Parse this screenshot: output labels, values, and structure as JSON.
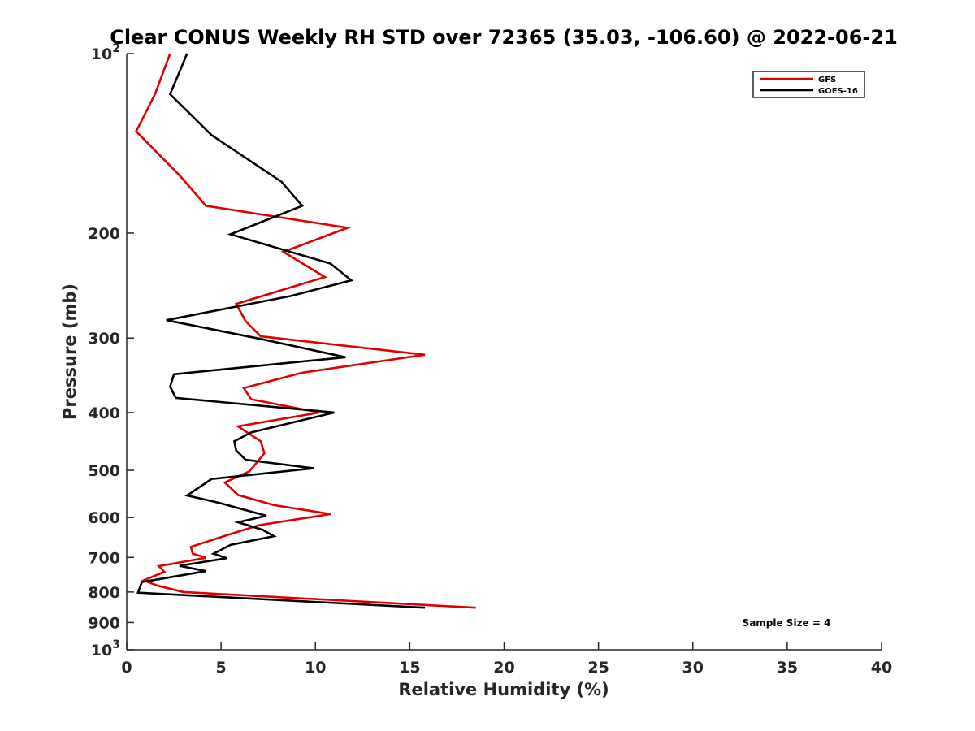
{
  "chart_data": {
    "type": "line",
    "title": "Clear CONUS Weekly RH STD over 72365 (35.03, -106.60) @ 2022-06-21",
    "xlabel": "Relative Humidity (%)",
    "ylabel": "Pressure (mb)",
    "xlim": [
      0,
      40
    ],
    "ylim": [
      100,
      1000
    ],
    "y_scale": "log",
    "y_reversed": true,
    "x_ticks": [
      "0",
      "5",
      "10",
      "15",
      "20",
      "25",
      "30",
      "35",
      "40"
    ],
    "x_tick_values": [
      0,
      5,
      10,
      15,
      20,
      25,
      30,
      35,
      40
    ],
    "y_ticks": [
      {
        "value": 100,
        "base": "10",
        "exp": "2"
      },
      {
        "value": 200,
        "base": "200",
        "exp": ""
      },
      {
        "value": 300,
        "base": "300",
        "exp": ""
      },
      {
        "value": 400,
        "base": "400",
        "exp": ""
      },
      {
        "value": 500,
        "base": "500",
        "exp": ""
      },
      {
        "value": 600,
        "base": "600",
        "exp": ""
      },
      {
        "value": 700,
        "base": "700",
        "exp": ""
      },
      {
        "value": 800,
        "base": "800",
        "exp": ""
      },
      {
        "value": 900,
        "base": "900",
        "exp": ""
      },
      {
        "value": 1000,
        "base": "10",
        "exp": "3"
      }
    ],
    "legend_position": "top-right",
    "annotation": "Sample Size = 4",
    "series": [
      {
        "name": "GFS",
        "color": "#e00000",
        "points": [
          [
            2.3,
            100
          ],
          [
            1.5,
            117
          ],
          [
            0.5,
            135
          ],
          [
            2.8,
            160
          ],
          [
            4.2,
            180
          ],
          [
            11.7,
            196
          ],
          [
            8.3,
            215
          ],
          [
            10.5,
            237
          ],
          [
            5.8,
            263
          ],
          [
            6.3,
            281
          ],
          [
            7.1,
            298
          ],
          [
            15.8,
            320
          ],
          [
            9.3,
            343
          ],
          [
            6.2,
            364
          ],
          [
            6.6,
            380
          ],
          [
            10.2,
            400
          ],
          [
            5.9,
            422
          ],
          [
            7.1,
            447
          ],
          [
            7.3,
            468
          ],
          [
            6.5,
            502
          ],
          [
            5.2,
            524
          ],
          [
            5.9,
            550
          ],
          [
            7.8,
            572
          ],
          [
            10.8,
            592
          ],
          [
            7.0,
            618
          ],
          [
            5.4,
            641
          ],
          [
            3.4,
            672
          ],
          [
            3.5,
            690
          ],
          [
            4.2,
            701
          ],
          [
            1.7,
            724
          ],
          [
            2.0,
            740
          ],
          [
            0.9,
            765
          ],
          [
            1.6,
            780
          ],
          [
            3.0,
            800
          ],
          [
            18.5,
            850
          ]
        ]
      },
      {
        "name": "GOES-16",
        "color": "#000000",
        "points": [
          [
            3.2,
            100
          ],
          [
            2.3,
            117
          ],
          [
            4.5,
            137
          ],
          [
            8.2,
            164
          ],
          [
            9.3,
            180
          ],
          [
            5.5,
            201
          ],
          [
            10.8,
            225
          ],
          [
            11.9,
            240
          ],
          [
            8.7,
            255
          ],
          [
            2.1,
            280
          ],
          [
            7.1,
            301
          ],
          [
            11.6,
            323
          ],
          [
            2.5,
            345
          ],
          [
            2.3,
            362
          ],
          [
            2.6,
            378
          ],
          [
            11.0,
            400
          ],
          [
            6.6,
            432
          ],
          [
            5.7,
            447
          ],
          [
            5.8,
            463
          ],
          [
            6.3,
            480
          ],
          [
            9.9,
            496
          ],
          [
            4.5,
            517
          ],
          [
            3.2,
            551
          ],
          [
            4.9,
            567
          ],
          [
            7.4,
            596
          ],
          [
            5.9,
            611
          ],
          [
            7.2,
            629
          ],
          [
            7.8,
            645
          ],
          [
            5.5,
            667
          ],
          [
            4.6,
            690
          ],
          [
            5.3,
            702
          ],
          [
            2.8,
            723
          ],
          [
            4.2,
            738
          ],
          [
            0.8,
            770
          ],
          [
            0.6,
            802
          ],
          [
            15.8,
            850
          ]
        ]
      }
    ]
  }
}
